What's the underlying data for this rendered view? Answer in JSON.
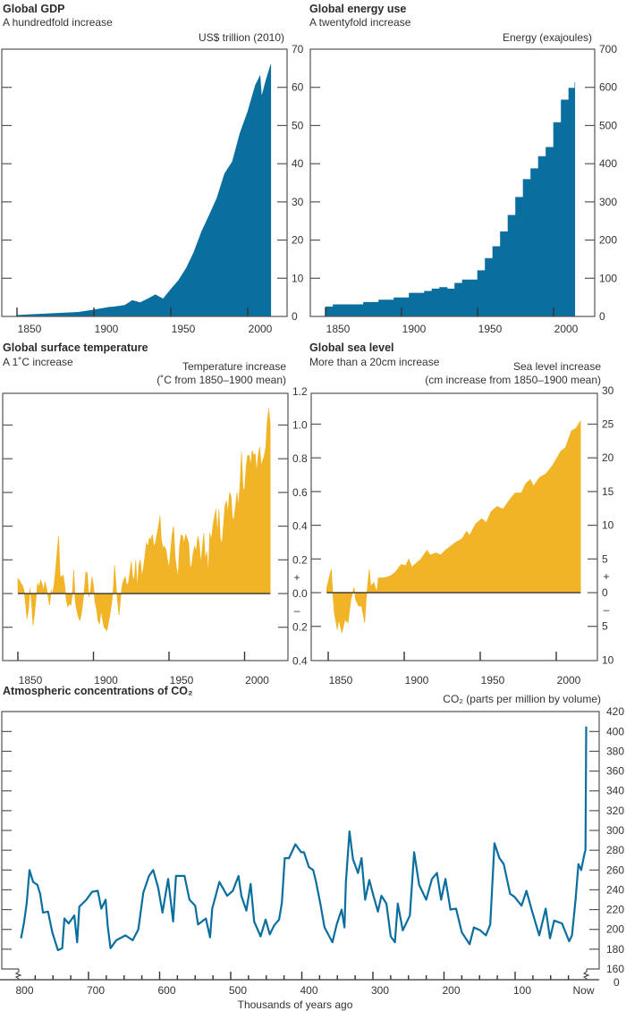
{
  "colors": {
    "blue": "#0a6e9f",
    "gold": "#f1b427",
    "axis": "#555555",
    "text": "#333333"
  },
  "chart_data": [
    {
      "type": "area",
      "title": "Global GDP",
      "subtitle": "A hundredfold increase",
      "ylabel": [
        "US$ trillion (2010)"
      ],
      "ylim": [
        0,
        70
      ],
      "yticks": [
        0,
        10,
        20,
        30,
        40,
        50,
        60,
        70
      ],
      "ytick_labels": [
        "0",
        "10",
        "20",
        "30",
        "40",
        "50",
        "60",
        "70"
      ],
      "xticks": [
        1850,
        1900,
        1950,
        2000
      ],
      "xtick_labels": [
        "1850",
        "1900",
        "1950",
        "2000"
      ],
      "color": "#0a6e9f",
      "x": [
        1850,
        1865,
        1890,
        1900,
        1910,
        1913,
        1920,
        1925,
        1930,
        1935,
        1940,
        1945,
        1950,
        1955,
        1960,
        1965,
        1970,
        1975,
        1980,
        1985,
        1990,
        1995,
        2000,
        2005,
        2008,
        2009,
        2012,
        2015
      ],
      "y": [
        0.3,
        0.6,
        1.1,
        1.7,
        2.4,
        2.5,
        2.9,
        4.2,
        3.6,
        4.6,
        5.7,
        4.6,
        7.1,
        9.4,
        12.6,
        16.8,
        22.2,
        26.5,
        31,
        37.4,
        40.5,
        48,
        53.6,
        60.6,
        63,
        57.5,
        62,
        66
      ]
    },
    {
      "type": "area",
      "title": "Global energy use",
      "subtitle": "A twentyfold increase",
      "ylabel": [
        "Energy (exajoules)"
      ],
      "ylim": [
        0,
        700
      ],
      "yticks": [
        0,
        100,
        200,
        300,
        400,
        500,
        600,
        700
      ],
      "ytick_labels": [
        "0",
        "100",
        "200",
        "300",
        "400",
        "500",
        "600",
        "700"
      ],
      "xticks": [
        1850,
        1900,
        1950,
        2000
      ],
      "xtick_labels": [
        "1850",
        "1900",
        "1950",
        "2000"
      ],
      "color": "#0a6e9f",
      "x": [
        1850,
        1855,
        1875,
        1885,
        1895,
        1905,
        1915,
        1920,
        1925,
        1930,
        1935,
        1940,
        1945,
        1950,
        1955,
        1960,
        1965,
        1970,
        1975,
        1980,
        1985,
        1990,
        1995,
        2000,
        2005,
        2010,
        2014
      ],
      "y": [
        25,
        31,
        37,
        43,
        49,
        61,
        66,
        72,
        76,
        72,
        87,
        96,
        96,
        120,
        152,
        183,
        222,
        265,
        312,
        359,
        387,
        419,
        443,
        508,
        567,
        598,
        614
      ]
    },
    {
      "type": "area",
      "title": "Global surface temperature",
      "subtitle": "A 1˚C increase",
      "ylabel": [
        "Temperature increase",
        "(˚C  from 1850–1900 mean)"
      ],
      "ylim": [
        -0.4,
        1.2
      ],
      "yticks": [
        1.2,
        1.0,
        0.8,
        0.6,
        0.4,
        0.2,
        0.0,
        -0.2,
        -0.4
      ],
      "ytick_labels": [
        "1.2",
        "1.0",
        "0.8",
        "0.6",
        "0.4",
        "0.2",
        "0.0",
        "0.2",
        "0.4"
      ],
      "sign_labels": [
        "+",
        "–"
      ],
      "xticks": [
        1850,
        1900,
        1950,
        2000
      ],
      "xtick_labels": [
        "1850",
        "1900",
        "1950",
        "2000"
      ],
      "color": "#f1b427",
      "x_first": 1850,
      "x_step": 1,
      "y": [
        0.09,
        0.08,
        0.06,
        0.05,
        0.02,
        -0.05,
        -0.15,
        -0.1,
        0.03,
        -0.05,
        -0.19,
        -0.12,
        -0.03,
        0.06,
        0.04,
        0.08,
        0.06,
        0.02,
        0.07,
        0.03,
        -0.02,
        -0.07,
        0.02,
        0.0,
        0.06,
        0.15,
        0.25,
        0.34,
        0.1,
        0.1,
        0.11,
        0.05,
        -0.04,
        -0.08,
        -0.06,
        -0.07,
        -0.01,
        0.14,
        -0.05,
        -0.1,
        -0.14,
        -0.16,
        -0.12,
        -0.05,
        0.03,
        0.13,
        0.12,
        -0.02,
        0.02,
        0.1,
        0.05,
        -0.05,
        -0.09,
        -0.16,
        -0.18,
        -0.1,
        -0.15,
        -0.2,
        -0.21,
        -0.22,
        -0.17,
        -0.12,
        -0.06,
        0.02,
        0.17,
        0.05,
        -0.05,
        -0.13,
        -0.02,
        0.05,
        0.08,
        0.1,
        0.05,
        0.06,
        0.12,
        0.19,
        0.1,
        0.08,
        0.2,
        0.03,
        0.17,
        0.2,
        0.1,
        0.15,
        0.22,
        0.3,
        0.28,
        0.33,
        0.32,
        0.35,
        0.28,
        0.3,
        0.35,
        0.4,
        0.46,
        0.32,
        0.27,
        0.28,
        0.26,
        0.2,
        0.15,
        0.25,
        0.35,
        0.4,
        0.22,
        0.15,
        0.1,
        0.28,
        0.35,
        0.34,
        0.3,
        0.35,
        0.33,
        0.3,
        0.15,
        0.17,
        0.24,
        0.28,
        0.25,
        0.34,
        0.3,
        0.18,
        0.27,
        0.36,
        0.2,
        0.25,
        0.12,
        0.36,
        0.32,
        0.4,
        0.45,
        0.5,
        0.36,
        0.5,
        0.32,
        0.3,
        0.4,
        0.52,
        0.55,
        0.48,
        0.6,
        0.58,
        0.44,
        0.45,
        0.52,
        0.6,
        0.52,
        0.65,
        0.84,
        0.62,
        0.62,
        0.75,
        0.82,
        0.82,
        0.76,
        0.85,
        0.82,
        0.83,
        0.72,
        0.82,
        0.87,
        0.76,
        0.79,
        0.82,
        0.87,
        1.02,
        1.1,
        1.0
      ]
    },
    {
      "type": "area",
      "title": "Global sea level",
      "subtitle": "More than a 20cm increase",
      "ylabel": [
        "Sea level increase",
        "(cm increase from 1850–1900 mean)"
      ],
      "ylim": [
        -10,
        30
      ],
      "yticks": [
        30,
        25,
        20,
        15,
        10,
        5,
        0,
        -5,
        -10
      ],
      "ytick_labels": [
        "30",
        "25",
        "20",
        "15",
        "10",
        "5",
        "0",
        "5",
        "10"
      ],
      "sign_labels": [
        "+",
        "–"
      ],
      "xticks": [
        1850,
        1900,
        1950,
        2000
      ],
      "xtick_labels": [
        "1850",
        "1900",
        "1950",
        "2000"
      ],
      "color": "#f1b427",
      "x": [
        1849,
        1852,
        1853,
        1854,
        1856,
        1857,
        1859,
        1861,
        1863,
        1865,
        1867,
        1868,
        1870,
        1872,
        1874,
        1875,
        1877,
        1878,
        1880,
        1882,
        1883,
        1887,
        1891,
        1894,
        1898,
        1901,
        1903,
        1905,
        1908,
        1911,
        1915,
        1917,
        1921,
        1924,
        1927,
        1930,
        1934,
        1938,
        1941,
        1943,
        1947,
        1951,
        1954,
        1957,
        1961,
        1965,
        1970,
        1973,
        1977,
        1980,
        1983,
        1985,
        1989,
        1993,
        1997,
        2000,
        2003,
        2006,
        2010,
        2013,
        2016
      ],
      "y": [
        0.7,
        3.5,
        0,
        -3,
        -5.5,
        -4,
        -6,
        -4,
        -4.5,
        -1,
        0.8,
        -1,
        -2,
        -2,
        -4.5,
        -1,
        3.5,
        1,
        1.5,
        0.1,
        2.2,
        2.2,
        2.5,
        3,
        4.2,
        4,
        5,
        3.8,
        4.4,
        5,
        6.3,
        5.6,
        5.9,
        5.6,
        6.3,
        6.8,
        7.5,
        8,
        9.1,
        8.5,
        10.2,
        11,
        10.4,
        12,
        12.8,
        12.4,
        14,
        14.8,
        14.8,
        16.2,
        16.8,
        15.8,
        17.1,
        17.6,
        18.7,
        19.8,
        21,
        21.5,
        24,
        24.4,
        25.5
      ]
    },
    {
      "type": "line",
      "title": "Atmospheric concentrations of CO₂",
      "ylabel": [
        "CO₂ (parts per million by volume)"
      ],
      "xlabel": "Thousands of years ago",
      "ylim": [
        160,
        420
      ],
      "axis_break": true,
      "yticks": [
        420,
        400,
        380,
        360,
        340,
        320,
        300,
        280,
        260,
        240,
        220,
        200,
        180,
        160
      ],
      "ytick_labels": [
        "420",
        "400",
        "380",
        "360",
        "340",
        "320",
        "300",
        "280",
        "260",
        "240",
        "220",
        "200",
        "180",
        "160"
      ],
      "y_origin_label": "0",
      "xticks": [
        800,
        700,
        600,
        500,
        400,
        300,
        200,
        100,
        0
      ],
      "xtick_labels": [
        "800",
        "700",
        "600",
        "500",
        "400",
        "300",
        "200",
        "100",
        "Now"
      ],
      "color": "#0a6e9f",
      "x": [
        795,
        791,
        787,
        783,
        778,
        772,
        768,
        764,
        757,
        751,
        743,
        737,
        734,
        728,
        720,
        716,
        713,
        703,
        695,
        687,
        682,
        676,
        673,
        669,
        661,
        648,
        638,
        630,
        623,
        615,
        609,
        602,
        596,
        588,
        581,
        577,
        565,
        558,
        550,
        546,
        535,
        529,
        526,
        516,
        505,
        497,
        489,
        485,
        478,
        472,
        467,
        458,
        451,
        445,
        439,
        432,
        428,
        424,
        418,
        409,
        401,
        397,
        390,
        384,
        380,
        374,
        368,
        357,
        351,
        344,
        340,
        338,
        333,
        328,
        321,
        316,
        311,
        305,
        300,
        293,
        288,
        281,
        275,
        269,
        265,
        258,
        248,
        242,
        235,
        225,
        217,
        210,
        204,
        198,
        191,
        183,
        175,
        164,
        158,
        149,
        141,
        135,
        129,
        122,
        116,
        107,
        101,
        91,
        84,
        76,
        66,
        57,
        51,
        45,
        34,
        24,
        20,
        15,
        11,
        7,
        2,
        1,
        0
      ],
      "y": [
        191,
        206,
        226,
        260,
        248,
        245,
        236,
        217,
        218,
        197,
        179,
        181,
        211,
        206,
        214,
        187,
        223,
        230,
        238,
        239,
        221,
        230,
        203,
        181,
        189,
        194,
        189,
        200,
        237,
        254,
        260,
        242,
        217,
        251,
        208,
        254,
        254,
        230,
        224,
        205,
        211,
        192,
        221,
        248,
        234,
        239,
        254,
        234,
        219,
        246,
        208,
        193,
        210,
        195,
        204,
        210,
        227,
        272,
        272,
        286,
        278,
        278,
        263,
        260,
        248,
        226,
        202,
        187,
        205,
        220,
        202,
        248,
        299,
        271,
        257,
        272,
        230,
        250,
        236,
        218,
        234,
        226,
        193,
        187,
        226,
        199,
        214,
        278,
        245,
        230,
        251,
        257,
        230,
        251,
        220,
        221,
        197,
        185,
        202,
        199,
        194,
        205,
        287,
        272,
        266,
        236,
        233,
        224,
        239,
        218,
        194,
        221,
        191,
        209,
        206,
        188,
        194,
        230,
        266,
        260,
        278,
        280,
        405
      ]
    }
  ]
}
